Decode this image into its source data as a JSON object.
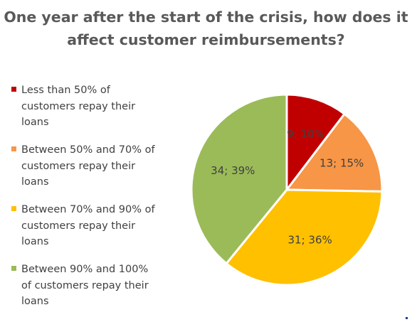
{
  "chart_data": {
    "type": "pie",
    "title": "One year after the start of the crisis, how does it affect customer reimbursements?",
    "legend_position": "left",
    "slices": [
      {
        "name": "Less than 50% of customers repay their loans",
        "value": 9,
        "percent": "10%",
        "label": "9; 10%",
        "color": "#c00000"
      },
      {
        "name": "Between 50% and 70% of customers repay their loans",
        "value": 13,
        "percent": "15%",
        "label": "13; 15%",
        "color": "#f79646"
      },
      {
        "name": "Between 70% and 90% of customers repay their loans",
        "value": 31,
        "percent": "36%",
        "label": "31; 36%",
        "color": "#ffc000"
      },
      {
        "name": "Between 90% and 100% of customers repay their loans",
        "value": 34,
        "percent": "39%",
        "label": "34; 39%",
        "color": "#9bbb59"
      }
    ]
  }
}
